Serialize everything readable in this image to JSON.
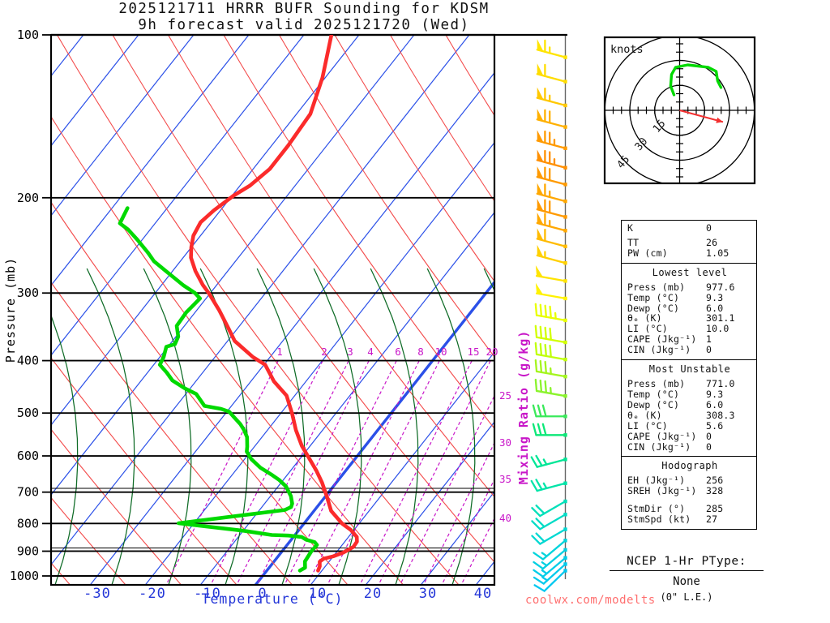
{
  "title": {
    "line1": "2025121711 HRRR BUFR Sounding for KDSM",
    "line2": "9h forecast valid 2025121720 (Wed)"
  },
  "watermark": "coolwx.com/modelts",
  "colors": {
    "temperature_curve": "#fb2b2b",
    "dewpoint_curve": "#00d900",
    "isotherm": "#2b50e8",
    "dry_adiabat": "#f34b4b",
    "moist_adiabat": "#0e6b26",
    "mixing_ratio": "#c816c8",
    "axis_text_blue": "#2537d8",
    "pressure_line": "#000000",
    "barb_line": "#666666",
    "storm_arrow": "#f33030",
    "hodo_trace": "#00d900"
  },
  "axes": {
    "pressure_label": "Pressure (mb)",
    "pressure_ticks": [
      100,
      200,
      300,
      400,
      500,
      600,
      700,
      800,
      900,
      1000
    ],
    "temp_label": "Temperature (°C)",
    "temp_ticks": [
      -30,
      -20,
      -10,
      0,
      10,
      20,
      30,
      40
    ],
    "mixing_label": "Mixing Ratio (g/kg)",
    "mixing_inline_labels": [
      1,
      2,
      3,
      4,
      6,
      8,
      10,
      15,
      20
    ],
    "mixing_right_labels": [
      25,
      30,
      35,
      40
    ]
  },
  "chart_data": {
    "type": "skewt_sounding",
    "pressure_range_mb": [
      100,
      1000
    ],
    "temp_axis_range_c": [
      -40,
      45
    ],
    "temperature_profile_p_t": [
      [
        100,
        -65.0
      ],
      [
        120,
        -60.5
      ],
      [
        140,
        -57.5
      ],
      [
        160,
        -57.0
      ],
      [
        177,
        -57.0
      ],
      [
        190,
        -58.2
      ],
      [
        198,
        -59.7
      ],
      [
        211,
        -61.2
      ],
      [
        222,
        -61.9
      ],
      [
        235,
        -61.3
      ],
      [
        247,
        -60.0
      ],
      [
        258,
        -58.6
      ],
      [
        273,
        -55.9
      ],
      [
        290,
        -52.5
      ],
      [
        300,
        -50.3
      ],
      [
        323,
        -45.9
      ],
      [
        349,
        -41.6
      ],
      [
        368,
        -38.7
      ],
      [
        394,
        -33.1
      ],
      [
        407,
        -29.8
      ],
      [
        437,
        -25.8
      ],
      [
        464,
        -21.5
      ],
      [
        501,
        -17.9
      ],
      [
        537,
        -14.9
      ],
      [
        575,
        -11.5
      ],
      [
        600,
        -9.0
      ],
      [
        638,
        -5.4
      ],
      [
        672,
        -2.6
      ],
      [
        712,
        0.2
      ],
      [
        758,
        3.1
      ],
      [
        800,
        6.9
      ],
      [
        822,
        9.4
      ],
      [
        847,
        11.5
      ],
      [
        864,
        12.2
      ],
      [
        884,
        12.3
      ],
      [
        905,
        11.3
      ],
      [
        920,
        10.0
      ],
      [
        929,
        8.6
      ],
      [
        941,
        8.3
      ],
      [
        960,
        9.0
      ],
      [
        977.6,
        9.3
      ]
    ],
    "dewpoint_profile_p_t": [
      [
        209,
        -77.2
      ],
      [
        223,
        -76.4
      ],
      [
        229,
        -74.0
      ],
      [
        239,
        -70.9
      ],
      [
        253,
        -67.0
      ],
      [
        262,
        -64.8
      ],
      [
        272,
        -61.6
      ],
      [
        290,
        -56.1
      ],
      [
        300,
        -52.8
      ],
      [
        307,
        -51.1
      ],
      [
        326,
        -51.6
      ],
      [
        345,
        -51.4
      ],
      [
        361,
        -49.6
      ],
      [
        373,
        -49.1
      ],
      [
        377,
        -50.3
      ],
      [
        394,
        -49.3
      ],
      [
        407,
        -48.9
      ],
      [
        421,
        -46.5
      ],
      [
        435,
        -44.4
      ],
      [
        450,
        -41.0
      ],
      [
        461,
        -38.1
      ],
      [
        485,
        -34.9
      ],
      [
        491,
        -31.5
      ],
      [
        497,
        -29.6
      ],
      [
        509,
        -27.9
      ],
      [
        524,
        -25.8
      ],
      [
        537,
        -24.3
      ],
      [
        554,
        -22.7
      ],
      [
        577,
        -21.3
      ],
      [
        589,
        -20.7
      ],
      [
        608,
        -18.8
      ],
      [
        631,
        -15.9
      ],
      [
        651,
        -12.7
      ],
      [
        665,
        -10.7
      ],
      [
        683,
        -8.6
      ],
      [
        712,
        -6.3
      ],
      [
        735,
        -5.0
      ],
      [
        746,
        -4.7
      ],
      [
        755,
        -5.4
      ],
      [
        799,
        -22.8
      ],
      [
        825,
        -9.9
      ],
      [
        840,
        -4.2
      ],
      [
        842,
        -1.1
      ],
      [
        847,
        1.5
      ],
      [
        857,
        2.7
      ],
      [
        866,
        4.6
      ],
      [
        876,
        5.4
      ],
      [
        900,
        5.3
      ],
      [
        940,
        5.6
      ],
      [
        965,
        6.5
      ],
      [
        977.6,
        6.0
      ]
    ],
    "wind_barbs": [
      {
        "p": 110,
        "spd": 65,
        "ang": 195,
        "color": "#ffe400"
      },
      {
        "p": 122,
        "spd": 60,
        "ang": 195,
        "color": "#ffdd00"
      },
      {
        "p": 135,
        "spd": 65,
        "ang": 195,
        "color": "#ffc800"
      },
      {
        "p": 148,
        "spd": 70,
        "ang": 195,
        "color": "#ffb000"
      },
      {
        "p": 162,
        "spd": 75,
        "ang": 195,
        "color": "#ff9a00"
      },
      {
        "p": 176,
        "spd": 75,
        "ang": 195,
        "color": "#ff8f00"
      },
      {
        "p": 189,
        "spd": 70,
        "ang": 195,
        "color": "#ff9a00"
      },
      {
        "p": 203,
        "spd": 65,
        "ang": 195,
        "color": "#ffa800"
      },
      {
        "p": 217,
        "spd": 70,
        "ang": 195,
        "color": "#ff9a00"
      },
      {
        "p": 230,
        "spd": 65,
        "ang": 195,
        "color": "#ffa800"
      },
      {
        "p": 246,
        "spd": 60,
        "ang": 195,
        "color": "#ffbb00"
      },
      {
        "p": 264,
        "spd": 55,
        "ang": 195,
        "color": "#ffd000"
      },
      {
        "p": 285,
        "spd": 50,
        "ang": 190,
        "color": "#ffe400"
      },
      {
        "p": 307,
        "spd": 50,
        "ang": 190,
        "color": "#fff200"
      },
      {
        "p": 337,
        "spd": 45,
        "ang": 190,
        "color": "#e8ff00"
      },
      {
        "p": 370,
        "spd": 40,
        "ang": 190,
        "color": "#d2ff00"
      },
      {
        "p": 398,
        "spd": 40,
        "ang": 190,
        "color": "#c0ff0a"
      },
      {
        "p": 428,
        "spd": 35,
        "ang": 190,
        "color": "#a4f51e"
      },
      {
        "p": 465,
        "spd": 35,
        "ang": 190,
        "color": "#8af32c"
      },
      {
        "p": 507,
        "spd": 30,
        "ang": 180,
        "color": "#3ae95a"
      },
      {
        "p": 549,
        "spd": 30,
        "ang": 180,
        "color": "#0ce878"
      },
      {
        "p": 609,
        "spd": 25,
        "ang": 165,
        "color": "#00e696"
      },
      {
        "p": 674,
        "spd": 25,
        "ang": 165,
        "color": "#00e4a8"
      },
      {
        "p": 728,
        "spd": 20,
        "ang": 150,
        "color": "#00e0ba"
      },
      {
        "p": 770,
        "spd": 20,
        "ang": 150,
        "color": "#00dcc6"
      },
      {
        "p": 820,
        "spd": 20,
        "ang": 150,
        "color": "#00d8d2"
      },
      {
        "p": 860,
        "spd": 15,
        "ang": 140,
        "color": "#00d4dc"
      },
      {
        "p": 895,
        "spd": 15,
        "ang": 140,
        "color": "#00d0e2"
      },
      {
        "p": 926,
        "spd": 15,
        "ang": 140,
        "color": "#00cde8"
      },
      {
        "p": 951,
        "spd": 15,
        "ang": 138,
        "color": "#00caec"
      },
      {
        "p": 978,
        "spd": 10,
        "ang": 136,
        "color": "#00c8f0"
      }
    ]
  },
  "hodograph": {
    "unit_label": "knots",
    "rings_kt": [
      15,
      30,
      45
    ],
    "trace_uv_kt": [
      [
        -3.4,
        9.3
      ],
      [
        -5.4,
        14.6
      ],
      [
        -4.9,
        21.5
      ],
      [
        -2.4,
        25.9
      ],
      [
        4.9,
        27.3
      ],
      [
        17.1,
        25.9
      ],
      [
        22.0,
        23.4
      ],
      [
        22.9,
        17.6
      ],
      [
        24.9,
        13.7
      ]
    ],
    "storm_motion": {
      "dir_deg": 285,
      "spd_kt": 27
    }
  },
  "panel": {
    "summary_rows": [
      [
        "K",
        "0"
      ],
      [
        "TT",
        "26"
      ],
      [
        "PW (cm)",
        "1.05"
      ]
    ],
    "sections": [
      {
        "title": "Lowest level",
        "rows": [
          [
            "Press (mb)",
            "977.6"
          ],
          [
            "Temp (°C)",
            "9.3"
          ],
          [
            "Dewp (°C)",
            "6.0"
          ],
          [
            "θₑ (K)",
            "301.1"
          ],
          [
            "LI (°C)",
            "10.0"
          ],
          [
            "CAPE (Jkg⁻¹)",
            "1"
          ],
          [
            "CIN (Jkg⁻¹)",
            "0"
          ]
        ],
        "gap_before_rows": []
      },
      {
        "title": "Most Unstable",
        "rows": [
          [
            "Press (mb)",
            "771.0"
          ],
          [
            "Temp (°C)",
            "9.3"
          ],
          [
            "Dewp (°C)",
            "6.0"
          ],
          [
            "θₑ (K)",
            "308.3"
          ],
          [
            "LI (°C)",
            "5.6"
          ],
          [
            "CAPE (Jkg⁻¹)",
            "0"
          ],
          [
            "CIN (Jkg⁻¹)",
            "0"
          ]
        ],
        "gap_before_rows": []
      },
      {
        "title": "Hodograph",
        "rows": [
          [
            "EH (Jkg⁻¹)",
            "256"
          ],
          [
            "SREH (Jkg⁻¹)",
            "328"
          ],
          [
            "StmDir (°)",
            "285"
          ],
          [
            "StmSpd (kt)",
            "27"
          ]
        ],
        "gap_before_rows": [
          2
        ]
      }
    ]
  },
  "ptype": {
    "header": "NCEP 1-Hr PType:",
    "value": "None",
    "detail": "(0\" L.E.)"
  }
}
